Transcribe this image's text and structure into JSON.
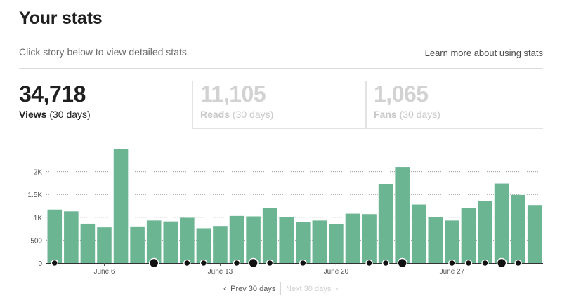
{
  "header": {
    "title": "Your stats",
    "subtitle": "Click story below to view detailed stats",
    "learn_more": "Learn more about using stats"
  },
  "stats": {
    "views": {
      "value": "34,718",
      "label": "Views",
      "period": "(30 days)"
    },
    "reads": {
      "value": "11,105",
      "label": "Reads",
      "period": "(30 days)"
    },
    "fans": {
      "value": "1,065",
      "label": "Fans",
      "period": "(30 days)"
    }
  },
  "chart_data": {
    "type": "bar",
    "title": "",
    "xlabel": "",
    "ylabel": "",
    "ylim": [
      0,
      2500
    ],
    "yticks": [
      0,
      500,
      1000,
      1500,
      2000
    ],
    "ytick_labels": [
      "0",
      "500",
      "1K",
      "1.5K",
      "2K"
    ],
    "grid": true,
    "bar_color": "#6bb593",
    "x_labels": [
      {
        "index": 3,
        "label": "June 6"
      },
      {
        "index": 10,
        "label": "June 13"
      },
      {
        "index": 17,
        "label": "June 20"
      },
      {
        "index": 24,
        "label": "June 27"
      }
    ],
    "values": [
      1170,
      1130,
      860,
      780,
      2500,
      800,
      930,
      910,
      990,
      760,
      810,
      1030,
      1020,
      1200,
      1000,
      890,
      930,
      850,
      1080,
      1070,
      1730,
      2100,
      1280,
      1010,
      930,
      1210,
      1360,
      1740,
      1490,
      1270
    ],
    "publish_markers": [
      {
        "index": 0,
        "size": "small"
      },
      {
        "index": 6,
        "size": "large"
      },
      {
        "index": 8,
        "size": "small"
      },
      {
        "index": 9,
        "size": "small"
      },
      {
        "index": 11,
        "size": "small"
      },
      {
        "index": 12,
        "size": "large"
      },
      {
        "index": 13,
        "size": "small"
      },
      {
        "index": 15,
        "size": "small"
      },
      {
        "index": 19,
        "size": "small"
      },
      {
        "index": 20,
        "size": "small"
      },
      {
        "index": 21,
        "size": "large"
      },
      {
        "index": 24,
        "size": "small"
      },
      {
        "index": 25,
        "size": "small"
      },
      {
        "index": 26,
        "size": "small"
      },
      {
        "index": 27,
        "size": "large"
      },
      {
        "index": 28,
        "size": "small"
      }
    ]
  },
  "pager": {
    "prev_label": "Prev 30 days",
    "next_label": "Next 30 days"
  },
  "colors": {
    "accent": "#6bb593",
    "marker": "#111111"
  }
}
